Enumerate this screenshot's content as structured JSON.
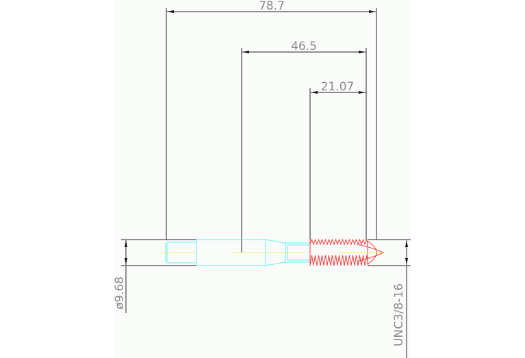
{
  "drawing": {
    "dimensions": {
      "overall_length": "78.7",
      "length_2": "46.5",
      "thread_length": "21.07",
      "shank_diameter": "ø9.68",
      "thread_spec": "UNC3/8-16"
    },
    "colors": {
      "dimension": "#222222",
      "dimension_text": "#8a8a8a",
      "body": "#5ff0f0",
      "thread": "#f03c3c",
      "centerline": "#f0f060",
      "background": "#fafcfa"
    }
  }
}
